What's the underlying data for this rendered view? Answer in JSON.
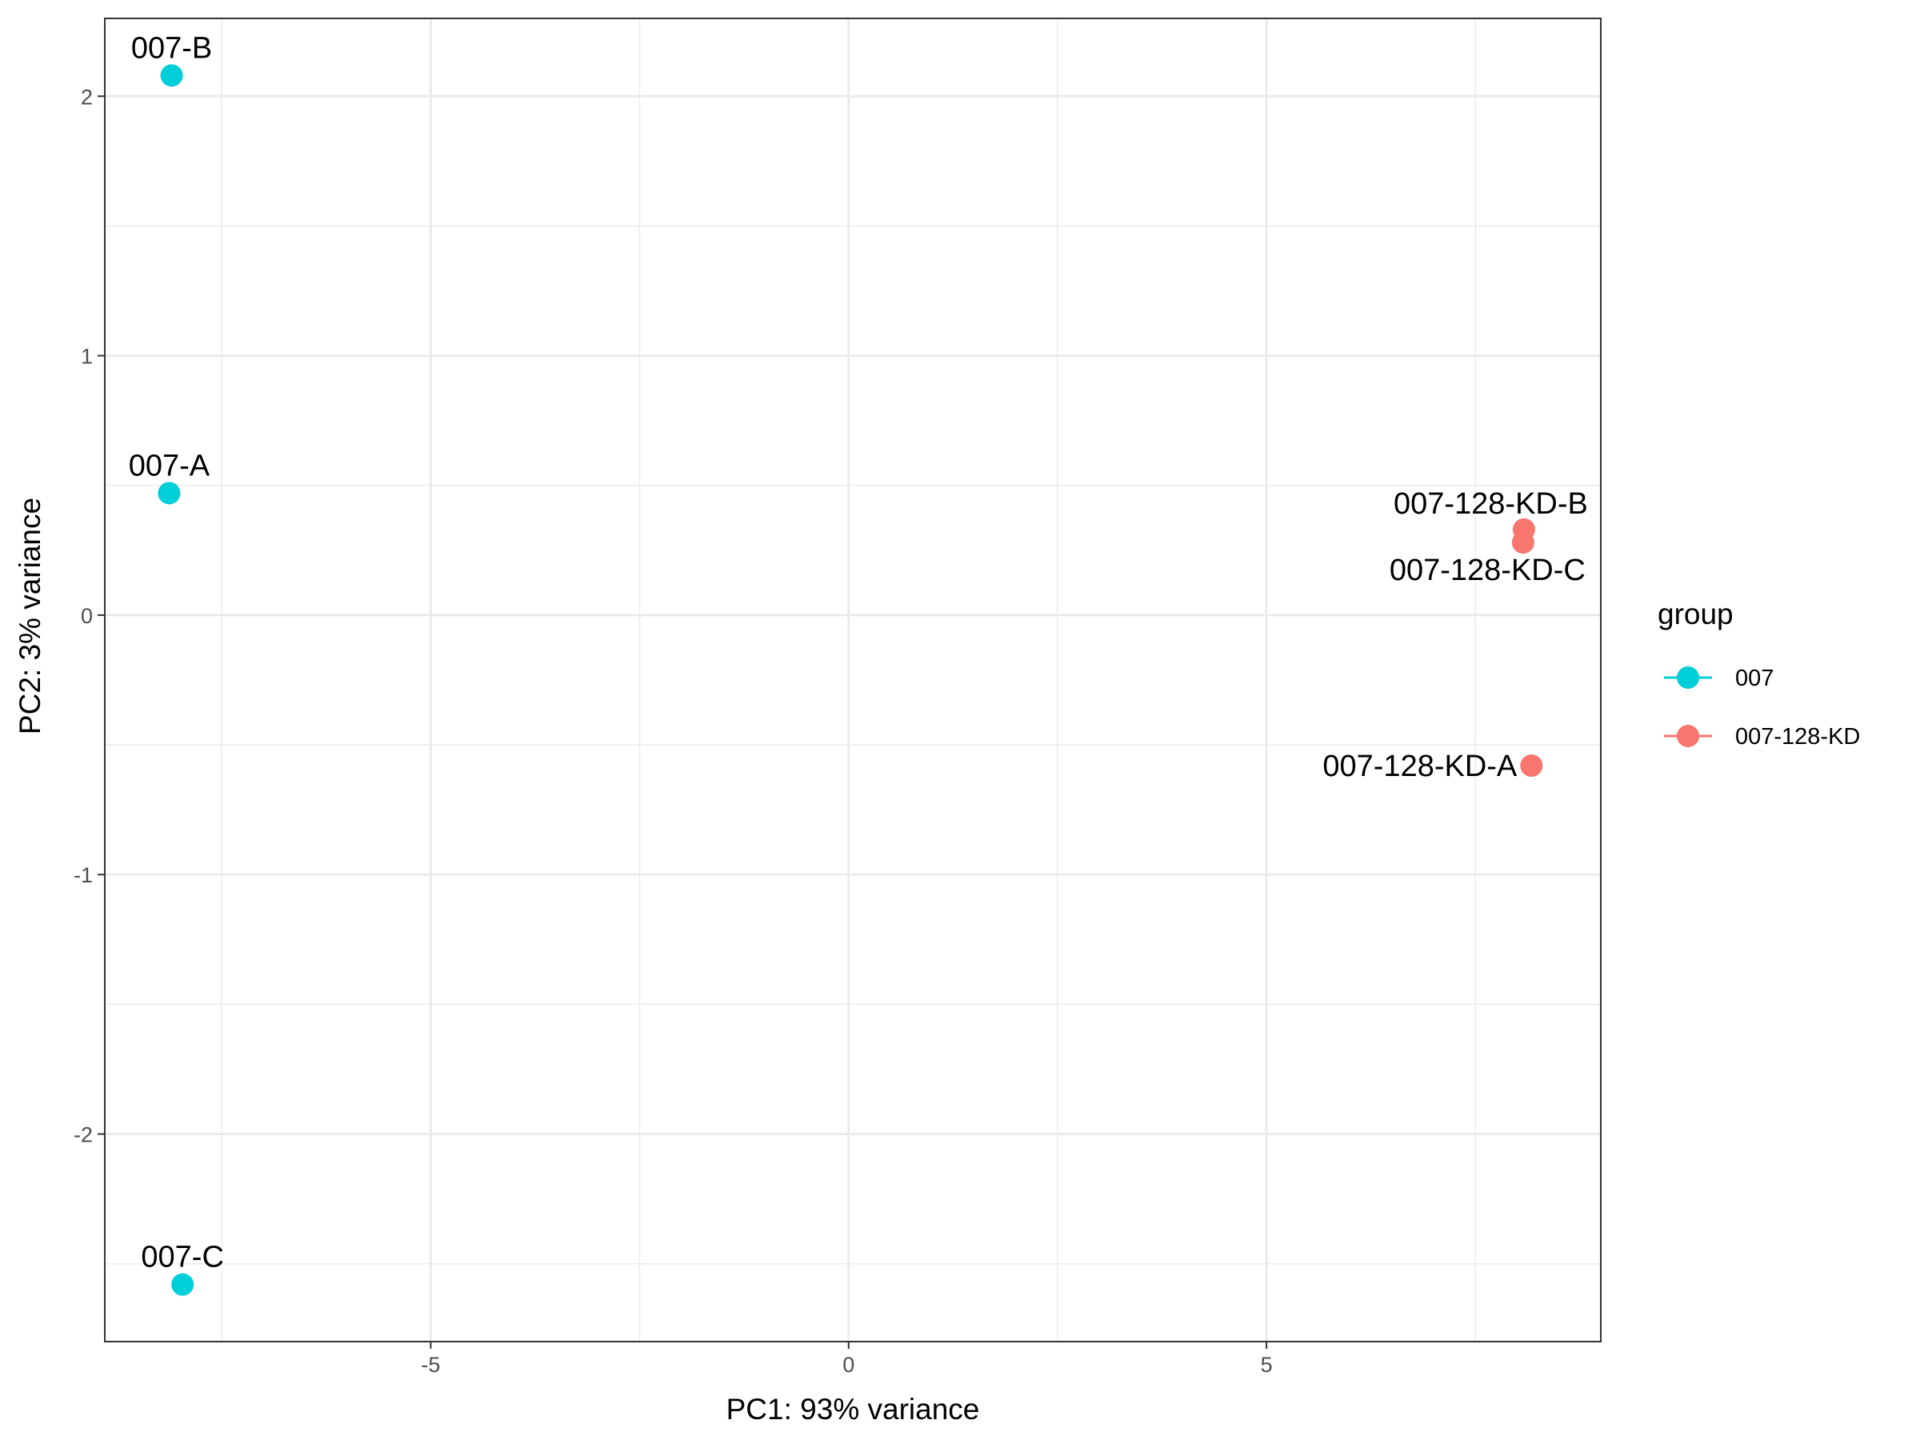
{
  "chart_data": {
    "type": "scatter",
    "xlabel": "PC1: 93% variance",
    "ylabel": "PC2: 3% variance",
    "xlim": [
      -8.9,
      9.0
    ],
    "ylim": [
      -2.8,
      2.3
    ],
    "x_ticks": [
      -5,
      0,
      5
    ],
    "x_tick_labels": [
      "-5",
      "0",
      "5"
    ],
    "y_ticks": [
      -2,
      -1,
      0,
      1,
      2
    ],
    "y_tick_labels": [
      "-2",
      "-1",
      "0",
      "1",
      "2"
    ],
    "x_minor_grid": [
      -7.5,
      -2.5,
      2.5,
      7.5
    ],
    "y_minor_grid": [
      -2.5,
      -1.5,
      -0.5,
      0.5,
      1.5
    ],
    "grid": true,
    "legend": {
      "title": "group",
      "position": "right",
      "entries": [
        {
          "label": "007",
          "color": "#00CED8"
        },
        {
          "label": "007-128-KD",
          "color": "#F8766D"
        }
      ]
    },
    "points": [
      {
        "label": "007-B",
        "group": "007",
        "x": -8.1,
        "y": 2.08,
        "label_pos": "above"
      },
      {
        "label": "007-A",
        "group": "007",
        "x": -8.13,
        "y": 0.47,
        "label_pos": "above"
      },
      {
        "label": "007-C",
        "group": "007",
        "x": -7.97,
        "y": -2.58,
        "label_pos": "above"
      },
      {
        "label": "007-128-KD-B",
        "group": "007-128-KD",
        "x": 8.08,
        "y": 0.33,
        "label_pos": "above-left"
      },
      {
        "label": "007-128-KD-C",
        "group": "007-128-KD",
        "x": 8.07,
        "y": 0.28,
        "label_pos": "below-left"
      },
      {
        "label": "007-128-KD-A",
        "group": "007-128-KD",
        "x": 8.17,
        "y": -0.58,
        "label_pos": "left"
      }
    ]
  }
}
